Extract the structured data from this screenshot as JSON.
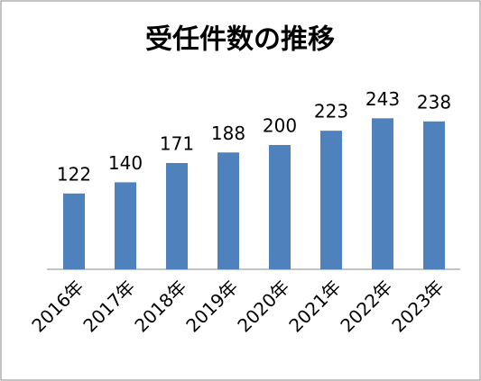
{
  "chart_data": {
    "type": "bar",
    "title": "受任件数の推移",
    "categories": [
      "2016年",
      "2017年",
      "2018年",
      "2019年",
      "2020年",
      "2021年",
      "2022年",
      "2023年"
    ],
    "values": [
      122,
      140,
      171,
      188,
      200,
      223,
      243,
      238
    ],
    "color": "#4f81bd",
    "ylim": [
      0,
      300
    ]
  }
}
